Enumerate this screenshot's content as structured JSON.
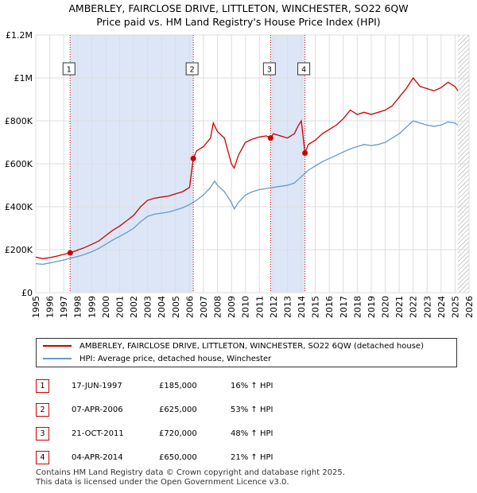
{
  "colors": {
    "price": "#cc0000",
    "hpi": "#6699cc",
    "shade": "#dde6f7",
    "grid": "#dddddd",
    "marker_line": "#cc0000"
  },
  "title": {
    "line1": "AMBERLEY, FAIRCLOSE DRIVE, LITTLETON, WINCHESTER, SO22 6QW",
    "line2": "Price paid vs. HM Land Registry's House Price Index (HPI)"
  },
  "legend": {
    "price_label": "AMBERLEY, FAIRCLOSE DRIVE, LITTLETON, WINCHESTER, SO22 6QW (detached house)",
    "hpi_label": "HPI: Average price, detached house, Winchester"
  },
  "sales": [
    {
      "num": "1",
      "date": "17-JUN-1997",
      "price": "£185,000",
      "hpi": "16% ↑ HPI"
    },
    {
      "num": "2",
      "date": "07-APR-2006",
      "price": "£625,000",
      "hpi": "53% ↑ HPI"
    },
    {
      "num": "3",
      "date": "21-OCT-2011",
      "price": "£720,000",
      "hpi": "48% ↑ HPI"
    },
    {
      "num": "4",
      "date": "04-APR-2014",
      "price": "£650,000",
      "hpi": "21% ↑ HPI"
    }
  ],
  "footer": {
    "line1": "Contains HM Land Registry data © Crown copyright and database right 2025.",
    "line2": "This data is licensed under the Open Government Licence v3.0."
  },
  "chart_data": {
    "type": "line",
    "title": "AMBERLEY, FAIRCLOSE DRIVE, LITTLETON, WINCHESTER, SO22 6QW — Price paid vs. HM Land Registry's House Price Index (HPI)",
    "xlabel": "",
    "ylabel": "",
    "xlim": [
      1995,
      2026
    ],
    "ylim": [
      0,
      1200000
    ],
    "y_ticks": [
      0,
      200000,
      400000,
      600000,
      800000,
      1000000,
      1200000
    ],
    "y_tick_labels": [
      "£0",
      "£200K",
      "£400K",
      "£600K",
      "£800K",
      "£1M",
      "£1.2M"
    ],
    "x_ticks": [
      1995,
      1996,
      1997,
      1998,
      1999,
      2000,
      2001,
      2002,
      2003,
      2004,
      2005,
      2006,
      2007,
      2008,
      2009,
      2010,
      2011,
      2012,
      2013,
      2014,
      2015,
      2016,
      2017,
      2018,
      2019,
      2020,
      2021,
      2022,
      2023,
      2024,
      2025,
      2026
    ],
    "grid": true,
    "legend": "bottom",
    "shaded_ranges": [
      [
        1997.46,
        2006.27
      ],
      [
        2011.8,
        2014.26
      ]
    ],
    "hatched_after": 2025.2,
    "sale_markers": [
      {
        "label": "1",
        "x": 1997.46,
        "y": 185000
      },
      {
        "label": "2",
        "x": 2006.27,
        "y": 625000
      },
      {
        "label": "3",
        "x": 2011.8,
        "y": 720000
      },
      {
        "label": "4",
        "x": 2014.26,
        "y": 650000
      }
    ],
    "series": [
      {
        "name": "AMBERLEY, FAIRCLOSE DRIVE, LITTLETON, WINCHESTER, SO22 6QW (detached house)",
        "x": [
          1995.0,
          1995.5,
          1996.0,
          1996.5,
          1997.0,
          1997.46,
          1998.0,
          1998.5,
          1999.0,
          1999.5,
          2000.0,
          2000.5,
          2001.0,
          2001.5,
          2002.0,
          2002.5,
          2003.0,
          2003.5,
          2004.0,
          2004.5,
          2005.0,
          2005.5,
          2006.0,
          2006.27,
          2006.5,
          2007.0,
          2007.5,
          2007.7,
          2008.0,
          2008.5,
          2009.0,
          2009.2,
          2009.5,
          2010.0,
          2010.5,
          2011.0,
          2011.5,
          2011.8,
          2012.0,
          2012.5,
          2013.0,
          2013.5,
          2013.8,
          2014.0,
          2014.26,
          2014.5,
          2015.0,
          2015.5,
          2016.0,
          2016.5,
          2017.0,
          2017.5,
          2018.0,
          2018.5,
          2019.0,
          2019.5,
          2020.0,
          2020.5,
          2021.0,
          2021.5,
          2022.0,
          2022.5,
          2023.0,
          2023.5,
          2024.0,
          2024.5,
          2025.0,
          2025.2
        ],
        "values": [
          165000,
          158000,
          163000,
          170000,
          178000,
          185000,
          198000,
          210000,
          225000,
          240000,
          265000,
          290000,
          310000,
          335000,
          360000,
          400000,
          430000,
          440000,
          445000,
          450000,
          460000,
          470000,
          490000,
          625000,
          660000,
          680000,
          720000,
          790000,
          750000,
          720000,
          600000,
          580000,
          640000,
          700000,
          715000,
          725000,
          730000,
          720000,
          740000,
          730000,
          720000,
          740000,
          780000,
          800000,
          650000,
          690000,
          710000,
          740000,
          760000,
          780000,
          810000,
          850000,
          830000,
          840000,
          830000,
          840000,
          850000,
          870000,
          910000,
          950000,
          1000000,
          960000,
          950000,
          940000,
          955000,
          980000,
          960000,
          940000
        ]
      },
      {
        "name": "HPI: Average price, detached house, Winchester",
        "x": [
          1995.0,
          1995.5,
          1996.0,
          1996.5,
          1997.0,
          1997.46,
          1998.0,
          1998.5,
          1999.0,
          1999.5,
          2000.0,
          2000.5,
          2001.0,
          2001.5,
          2002.0,
          2002.5,
          2003.0,
          2003.5,
          2004.0,
          2004.5,
          2005.0,
          2005.5,
          2006.0,
          2006.5,
          2007.0,
          2007.5,
          2007.8,
          2008.0,
          2008.5,
          2009.0,
          2009.2,
          2009.5,
          2010.0,
          2010.5,
          2011.0,
          2011.5,
          2012.0,
          2012.5,
          2013.0,
          2013.5,
          2014.0,
          2014.5,
          2015.0,
          2015.5,
          2016.0,
          2016.5,
          2017.0,
          2017.5,
          2018.0,
          2018.5,
          2019.0,
          2019.5,
          2020.0,
          2020.5,
          2021.0,
          2021.5,
          2022.0,
          2022.5,
          2023.0,
          2023.5,
          2024.0,
          2024.5,
          2025.0,
          2025.2
        ],
        "values": [
          135000,
          132000,
          138000,
          145000,
          152000,
          160000,
          168000,
          178000,
          190000,
          205000,
          225000,
          245000,
          262000,
          280000,
          300000,
          330000,
          355000,
          365000,
          370000,
          375000,
          385000,
          395000,
          410000,
          430000,
          455000,
          490000,
          520000,
          500000,
          470000,
          420000,
          390000,
          420000,
          455000,
          470000,
          480000,
          485000,
          490000,
          495000,
          500000,
          510000,
          540000,
          570000,
          590000,
          610000,
          625000,
          640000,
          655000,
          670000,
          680000,
          690000,
          685000,
          690000,
          700000,
          720000,
          740000,
          770000,
          800000,
          790000,
          780000,
          775000,
          780000,
          795000,
          790000,
          780000
        ]
      }
    ]
  }
}
